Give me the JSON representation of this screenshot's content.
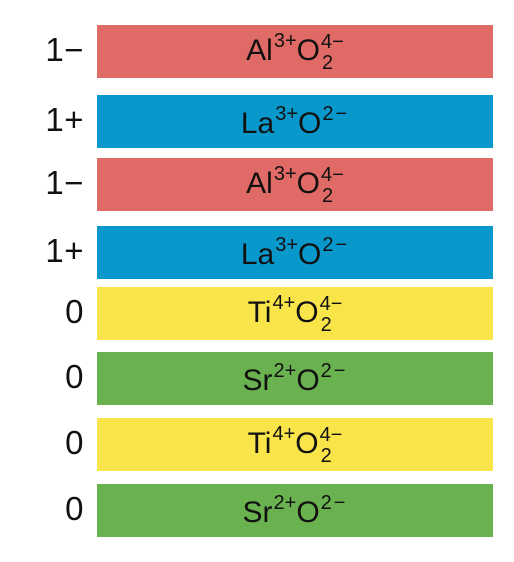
{
  "layers": [
    {
      "charge": "1−",
      "color": "#e06a66",
      "cation": "Al",
      "cation_charge": "3+",
      "anion": "O",
      "anion_sub": "2",
      "anion_charge": "4−"
    },
    {
      "charge": "1+",
      "color": "#0898cc",
      "cation": "La",
      "cation_charge": "3+",
      "anion": "O",
      "anion_sub": "",
      "anion_charge": "2−"
    },
    {
      "charge": "1−",
      "color": "#e06a66",
      "cation": "Al",
      "cation_charge": "3+",
      "anion": "O",
      "anion_sub": "2",
      "anion_charge": "4−"
    },
    {
      "charge": "1+",
      "color": "#0898cc",
      "cation": "La",
      "cation_charge": "3+",
      "anion": "O",
      "anion_sub": "",
      "anion_charge": "2−"
    },
    {
      "charge": "0",
      "color": "#f9e54a",
      "cation": "Ti",
      "cation_charge": "4+",
      "anion": "O",
      "anion_sub": "2",
      "anion_charge": "4−"
    },
    {
      "charge": "0",
      "color": "#6ab250",
      "cation": "Sr",
      "cation_charge": "2+",
      "anion": "O",
      "anion_sub": "",
      "anion_charge": "2−"
    },
    {
      "charge": "0",
      "color": "#f9e54a",
      "cation": "Ti",
      "cation_charge": "4+",
      "anion": "O",
      "anion_sub": "2",
      "anion_charge": "4−"
    },
    {
      "charge": "0",
      "color": "#6ab250",
      "cation": "Sr",
      "cation_charge": "2+",
      "anion": "O",
      "anion_sub": "",
      "anion_charge": "2−"
    }
  ]
}
